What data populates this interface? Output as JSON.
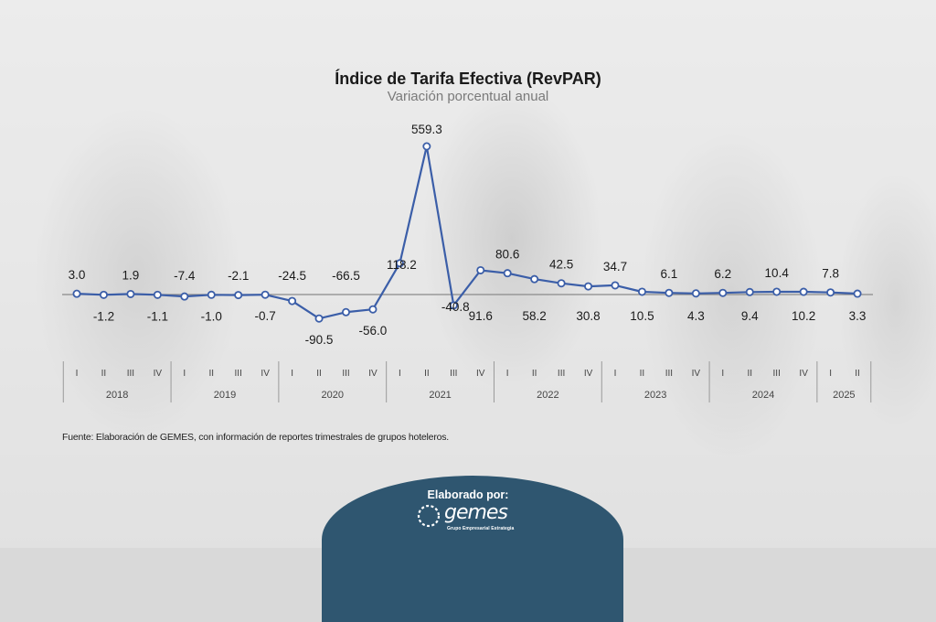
{
  "title": "Índice de Tarifa Efectiva (RevPAR)",
  "subtitle": "Variación porcentual anual",
  "source": "Fuente: Elaboración de GEMES, con información de reportes trimestrales de grupos hoteleros.",
  "badge": {
    "title": "Elaborado por:",
    "logo_word": "gemes",
    "logo_tagline": "Grupo Empresarial Estrategia"
  },
  "colors": {
    "line": "#3b5ea8",
    "badge": "#2f5670"
  },
  "chart_data": {
    "type": "line",
    "title": "Índice de Tarifa Efectiva (RevPAR)",
    "subtitle": "Variación porcentual anual",
    "x_quarters": [
      "I",
      "II",
      "III",
      "IV",
      "I",
      "II",
      "III",
      "IV",
      "I",
      "II",
      "III",
      "IV",
      "I",
      "II",
      "III",
      "IV",
      "I",
      "II",
      "III",
      "IV",
      "I",
      "II",
      "III",
      "IV",
      "I",
      "II",
      "III",
      "IV",
      "I",
      "II"
    ],
    "x_years": [
      "2018",
      "2019",
      "2020",
      "2021",
      "2022",
      "2023",
      "2024",
      "2025"
    ],
    "quarters_per_year": [
      4,
      4,
      4,
      4,
      4,
      4,
      4,
      2
    ],
    "values": [
      3.0,
      -1.2,
      1.9,
      -1.1,
      -7.4,
      -1.0,
      -2.1,
      -0.7,
      -24.5,
      -90.5,
      -66.5,
      -56.0,
      118.2,
      559.3,
      -40.8,
      91.6,
      80.6,
      58.2,
      42.5,
      30.8,
      34.7,
      10.5,
      6.1,
      4.3,
      6.2,
      9.4,
      10.4,
      10.2,
      7.8,
      3.3
    ],
    "labels": [
      "3.0",
      "-1.2",
      "1.9",
      "-1.1",
      "-7.4",
      "-1.0",
      "-2.1",
      "-0.7",
      "-24.5",
      "-90.5",
      "-66.5",
      "-56.0",
      "118.2",
      "559.3",
      "-40.8",
      "91.6",
      "80.6",
      "58.2",
      "42.5",
      "30.8",
      "34.7",
      "10.5",
      "6.1",
      "4.3",
      "6.2",
      "9.4",
      "10.4",
      "10.2",
      "7.8",
      "3.3"
    ],
    "label_positions": [
      "above",
      "below",
      "above",
      "below",
      "above",
      "below",
      "above",
      "below",
      "above",
      "below",
      "above",
      "below",
      "above",
      "above",
      "below",
      "below",
      "above",
      "below",
      "above",
      "below",
      "above",
      "below",
      "above",
      "below",
      "above",
      "below",
      "above",
      "below",
      "above",
      "below"
    ],
    "grid": false,
    "legend": "none"
  }
}
